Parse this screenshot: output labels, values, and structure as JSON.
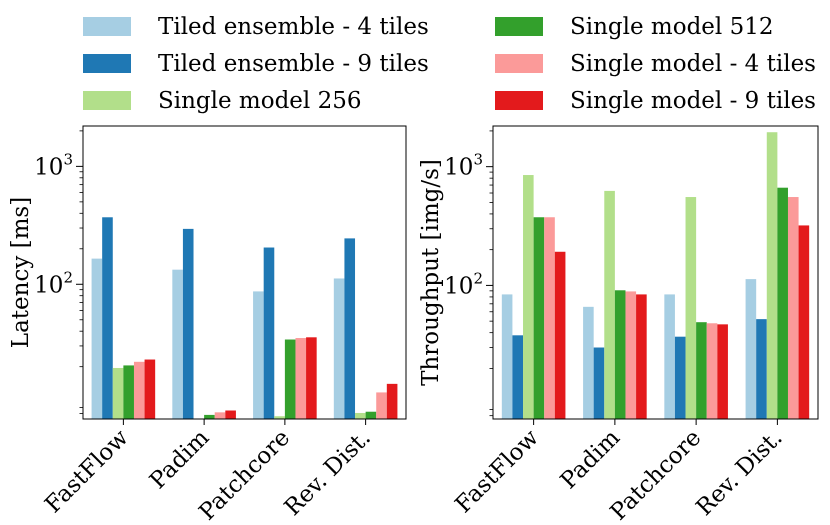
{
  "chart_data": {
    "type": "bar",
    "legend": {
      "placement": "top",
      "entries": [
        {
          "name": "Tiled ensemble - 4 tiles",
          "color": "#a6cee3"
        },
        {
          "name": "Tiled ensemble - 9 tiles",
          "color": "#1f78b4"
        },
        {
          "name": "Single model 256",
          "color": "#b2df8a"
        },
        {
          "name": "Single model 512",
          "color": "#33a02c"
        },
        {
          "name": "Single model - 4 tiles",
          "color": "#fb9a99"
        },
        {
          "name": "Single model - 9 tiles",
          "color": "#e31a1c"
        }
      ]
    },
    "charts": [
      {
        "ylabel": "Latency [ms]",
        "yscale": "log",
        "ylim": [
          7.2,
          2200
        ],
        "yticks": [
          {
            "value": 100,
            "base": "10",
            "exp": "2"
          },
          {
            "value": 1000,
            "base": "10",
            "exp": "3"
          }
        ],
        "categories": [
          "FastFlow",
          "Padim",
          "Patchcore",
          "Rev. Dist."
        ],
        "series": [
          {
            "name": "Tiled ensemble - 4 tiles",
            "values": [
              165,
              133,
              87,
              112
            ]
          },
          {
            "name": "Tiled ensemble - 9 tiles",
            "values": [
              370,
              295,
              205,
              245
            ]
          },
          {
            "name": "Single model 256",
            "values": [
              19.5,
              7.2,
              7.6,
              8.1
            ]
          },
          {
            "name": "Single model 512",
            "values": [
              20.5,
              7.8,
              34,
              8.3
            ]
          },
          {
            "name": "Single model - 4 tiles",
            "values": [
              22,
              8.2,
              35,
              12.1
            ]
          },
          {
            "name": "Single model - 9 tiles",
            "values": [
              23,
              8.5,
              35.5,
              14.3
            ]
          }
        ]
      },
      {
        "ylabel": "Throughput [img/s]",
        "yscale": "log",
        "ylim": [
          7.5,
          2200
        ],
        "yticks": [
          {
            "value": 100,
            "base": "10",
            "exp": "2"
          },
          {
            "value": 1000,
            "base": "10",
            "exp": "3"
          }
        ],
        "categories": [
          "FastFlow",
          "Padim",
          "Patchcore",
          "Rev. Dist."
        ],
        "series": [
          {
            "name": "Tiled ensemble - 4 tiles",
            "values": [
              84,
              66,
              84,
              113
            ]
          },
          {
            "name": "Tiled ensemble - 9 tiles",
            "values": [
              38,
              30,
              37,
              52
            ]
          },
          {
            "name": "Single model 256",
            "values": [
              850,
              625,
              555,
              1950
            ]
          },
          {
            "name": "Single model 512",
            "values": [
              375,
              91,
              49,
              665
            ]
          },
          {
            "name": "Single model - 4 tiles",
            "values": [
              375,
              89,
              48,
              555
            ]
          },
          {
            "name": "Single model - 9 tiles",
            "values": [
              192,
              84,
              47,
              320
            ]
          }
        ]
      }
    ]
  }
}
